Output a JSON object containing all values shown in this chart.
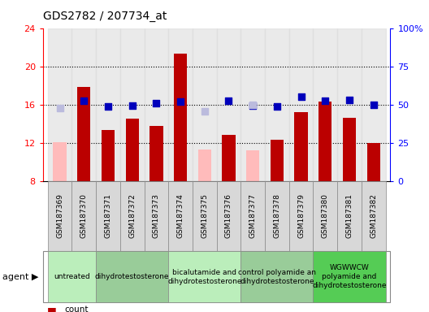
{
  "title": "GDS2782 / 207734_at",
  "samples": [
    "GSM187369",
    "GSM187370",
    "GSM187371",
    "GSM187372",
    "GSM187373",
    "GSM187374",
    "GSM187375",
    "GSM187376",
    "GSM187377",
    "GSM187378",
    "GSM187379",
    "GSM187380",
    "GSM187381",
    "GSM187382"
  ],
  "count_values": [
    null,
    17.8,
    13.3,
    14.5,
    13.8,
    21.3,
    null,
    12.8,
    null,
    12.3,
    15.2,
    16.3,
    14.6,
    12.0
  ],
  "absent_values": [
    12.1,
    null,
    null,
    null,
    null,
    null,
    11.3,
    null,
    11.2,
    null,
    null,
    null,
    null,
    null
  ],
  "rank_values": [
    null,
    16.4,
    15.8,
    15.9,
    16.1,
    16.3,
    null,
    16.4,
    15.9,
    15.8,
    16.8,
    16.4,
    16.5,
    16.0
  ],
  "absent_rank_values": [
    15.6,
    null,
    null,
    null,
    null,
    null,
    15.25,
    null,
    15.95,
    null,
    null,
    null,
    null,
    null
  ],
  "ylim": [
    8,
    24
  ],
  "y2lim": [
    0,
    100
  ],
  "yticks": [
    8,
    12,
    16,
    20,
    24
  ],
  "ytick_labels": [
    "8",
    "12",
    "16",
    "20",
    "24"
  ],
  "y2ticks": [
    0,
    25,
    50,
    75,
    100
  ],
  "y2tick_labels": [
    "0",
    "25",
    "50",
    "75",
    "100%"
  ],
  "groups": [
    {
      "label": "untreated",
      "start": 0,
      "end": 2,
      "color": "#bbeebb"
    },
    {
      "label": "dihydrotestosterone",
      "start": 2,
      "end": 5,
      "color": "#99cc99"
    },
    {
      "label": "bicalutamide and\ndihydrotestosterone",
      "start": 5,
      "end": 8,
      "color": "#bbeebb"
    },
    {
      "label": "control polyamide an\ndihydrotestosterone",
      "start": 8,
      "end": 11,
      "color": "#99cc99"
    },
    {
      "label": "WGWWCW\npolyamide and\ndihydrotestosterone",
      "start": 11,
      "end": 14,
      "color": "#55cc55"
    }
  ],
  "count_color": "#bb0000",
  "rank_color": "#0000bb",
  "absent_count_color": "#ffbbbb",
  "absent_rank_color": "#bbbbdd",
  "bar_width": 0.55,
  "marker_size": 28
}
